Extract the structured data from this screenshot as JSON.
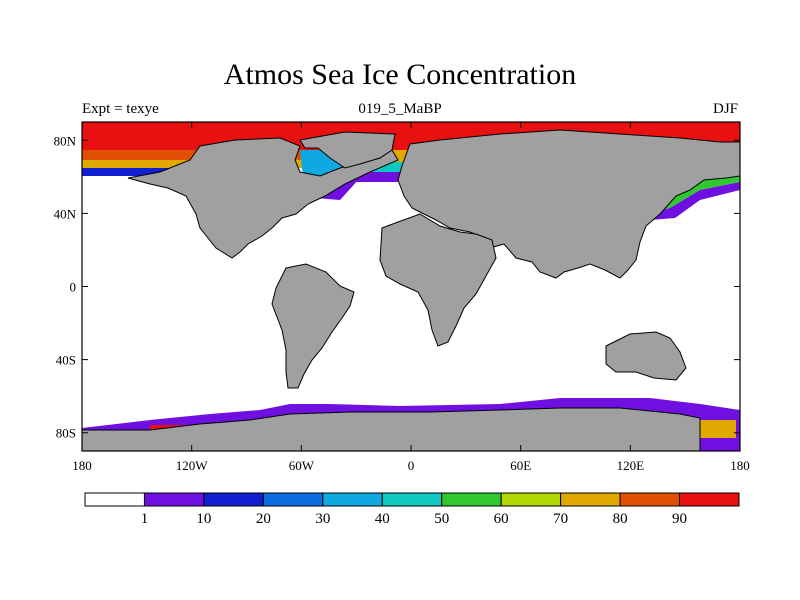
{
  "header": {
    "title": "Atmos Sea Ice Concentration",
    "left_label": "Expt = texye",
    "center_label": "019_5_MaBP",
    "right_label": "DJF"
  },
  "map": {
    "projection": "cylindrical-equidistant",
    "lon_range": [
      -180,
      180
    ],
    "lat_range": [
      -90,
      90
    ],
    "land_color": "#a0a0a0",
    "ocean_color": "#ffffff",
    "x_ticks": [
      {
        "lon": -180,
        "label": "180"
      },
      {
        "lon": -120,
        "label": "120W"
      },
      {
        "lon": -60,
        "label": "60W"
      },
      {
        "lon": 0,
        "label": "0"
      },
      {
        "lon": 60,
        "label": "60E"
      },
      {
        "lon": 120,
        "label": "120E"
      },
      {
        "lon": 180,
        "label": "180"
      }
    ],
    "y_ticks": [
      {
        "lat": 80,
        "label": "80N"
      },
      {
        "lat": 40,
        "label": "40N"
      },
      {
        "lat": 0,
        "label": "0"
      },
      {
        "lat": -40,
        "label": "40S"
      },
      {
        "lat": -80,
        "label": "80S"
      }
    ]
  },
  "colorbar": {
    "colors": [
      "#ffffff",
      "#7010e0",
      "#1020d0",
      "#0a6ee0",
      "#10a8e0",
      "#10c8c0",
      "#30c830",
      "#b0d800",
      "#e0a800",
      "#e05000",
      "#e81010"
    ],
    "labels": [
      "1",
      "10",
      "20",
      "30",
      "40",
      "50",
      "60",
      "70",
      "80",
      "90"
    ]
  }
}
